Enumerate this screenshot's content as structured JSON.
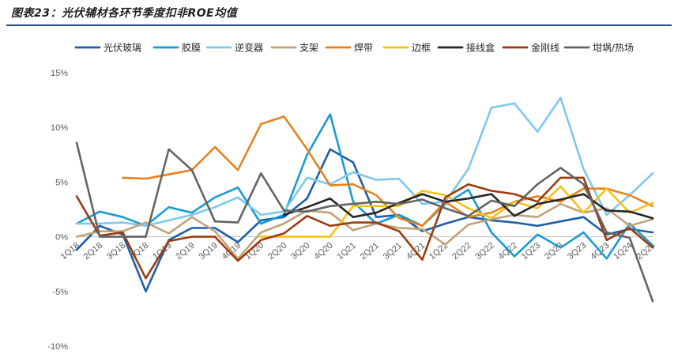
{
  "title": "图表23：光伏辅材各环节季度扣非ROE均值",
  "chart_data": {
    "type": "line",
    "categories": [
      "1Q18",
      "2Q18",
      "3Q18",
      "4Q18",
      "1Q19",
      "2Q19",
      "3Q19",
      "4Q19",
      "1Q20",
      "2Q20",
      "3Q20",
      "4Q20",
      "1Q21",
      "2Q21",
      "3Q21",
      "4Q21",
      "1Q22",
      "2Q22",
      "3Q22",
      "4Q22",
      "1Q23",
      "2Q23",
      "3Q23",
      "4Q23",
      "1Q24",
      "2Q24"
    ],
    "ylim": [
      -10,
      15
    ],
    "yticks": [
      -10,
      -5,
      0,
      5,
      10,
      15
    ],
    "ytick_labels": [
      "-10%",
      "-5%",
      "0%",
      "5%",
      "10%",
      "15%"
    ],
    "legend_position": "top",
    "grid": false,
    "series": [
      {
        "name": "光伏玻璃",
        "color": "#1f5fa8",
        "values": [
          -1.2,
          1.0,
          0.2,
          -5.0,
          -0.3,
          0.8,
          0.8,
          -0.5,
          1.5,
          1.8,
          3.5,
          8.0,
          6.8,
          1.8,
          2.0,
          0.5,
          1.2,
          1.8,
          1.5,
          1.3,
          1.0,
          1.4,
          1.8,
          0.2,
          0.7,
          0.4
        ]
      },
      {
        "name": "胶膜",
        "color": "#1a9ad6",
        "values": [
          1.2,
          2.3,
          1.8,
          1.0,
          2.7,
          2.2,
          3.6,
          4.5,
          1.2,
          2.0,
          7.5,
          11.2,
          3.2,
          1.2,
          2.0,
          1.0,
          3.0,
          4.3,
          0.4,
          -1.8,
          0.2,
          -1.0,
          0.4,
          -2.0,
          1.2,
          -0.8
        ]
      },
      {
        "name": "逆变器",
        "color": "#7ec8ee",
        "values": [
          1.2,
          1.2,
          1.3,
          1.0,
          1.5,
          2.0,
          2.7,
          3.6,
          2.0,
          2.3,
          5.4,
          4.8,
          5.9,
          5.2,
          5.3,
          3.0,
          3.2,
          6.2,
          11.8,
          12.2,
          9.6,
          12.7,
          6.2,
          2.0,
          3.8,
          5.8
        ]
      },
      {
        "name": "支架",
        "color": "#c0a37a",
        "values": [
          0.0,
          0.5,
          0.5,
          1.3,
          0.3,
          1.8,
          0.5,
          -2.0,
          0.4,
          1.2,
          2.4,
          2.2,
          0.6,
          1.2,
          0.8,
          0.7,
          -0.7,
          1.1,
          1.6,
          2.0,
          1.8,
          3.0,
          2.2,
          2.6,
          1.0,
          1.6
        ]
      },
      {
        "name": "焊带",
        "color": "#e7821e",
        "values": [
          null,
          null,
          5.4,
          5.3,
          5.7,
          6.1,
          8.2,
          6.1,
          10.3,
          11.0,
          8.0,
          4.7,
          4.8,
          3.8,
          1.7,
          1.0,
          3.2,
          1.8,
          2.2,
          3.2,
          3.7,
          3.2,
          4.4,
          4.4,
          3.8,
          2.8
        ]
      },
      {
        "name": "边框",
        "color": "#f5c218",
        "values": [
          null,
          null,
          null,
          null,
          null,
          null,
          null,
          null,
          0.0,
          0.0,
          0.0,
          0.0,
          2.8,
          2.8,
          2.8,
          4.2,
          3.8,
          2.6,
          1.7,
          3.2,
          2.6,
          4.6,
          2.2,
          4.4,
          2.2,
          3.1
        ]
      },
      {
        "name": "接线盒",
        "color": "#262626",
        "values": [
          null,
          null,
          null,
          null,
          null,
          null,
          null,
          null,
          null,
          2.0,
          2.7,
          3.5,
          1.8,
          2.2,
          3.1,
          3.9,
          3.2,
          3.5,
          3.9,
          1.9,
          3.0,
          3.4,
          3.9,
          2.4,
          2.3,
          1.7
        ]
      },
      {
        "name": "金刚线",
        "color": "#9b3c0f",
        "values": [
          3.7,
          0.1,
          0.4,
          -3.8,
          -0.4,
          0.0,
          0.0,
          -2.2,
          -0.3,
          0.3,
          1.9,
          1.0,
          1.3,
          1.3,
          0.5,
          -2.1,
          3.6,
          4.8,
          4.2,
          3.9,
          3.2,
          5.4,
          5.4,
          -0.3,
          0.8,
          -1.0
        ]
      },
      {
        "name": "坩埚/热场",
        "color": "#646464",
        "values": [
          8.6,
          0.0,
          0.0,
          0.0,
          8.0,
          6.1,
          1.4,
          1.3,
          5.8,
          2.4,
          2.3,
          2.8,
          3.0,
          3.2,
          3.0,
          3.4,
          2.6,
          1.9,
          3.3,
          2.8,
          4.8,
          6.3,
          4.8,
          0.4,
          -0.1,
          -5.9
        ]
      }
    ]
  }
}
